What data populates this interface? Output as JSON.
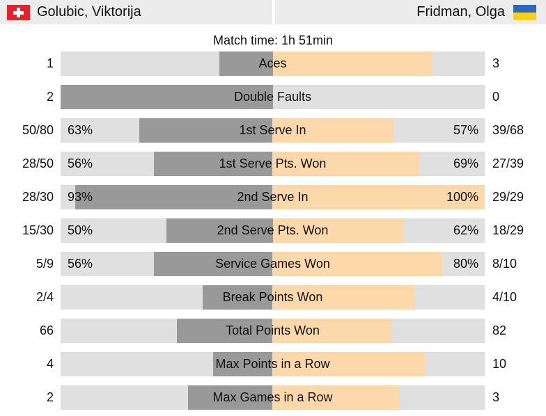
{
  "players": {
    "left": {
      "name": "Golubic, Viktorija",
      "flag": "switzerland-flag-icon"
    },
    "right": {
      "name": "Fridman, Olga",
      "flag": "ukraine-flag-icon"
    }
  },
  "match_time": "Match time: 1h 51min",
  "colors": {
    "left_fill": "#999999",
    "right_fill": "#fdd8ab",
    "bar_bg": "#e0e0e0",
    "header_bg": "#ececec"
  },
  "stats": [
    {
      "label": "Aces",
      "left": "1",
      "right": "3",
      "left_pct": "",
      "right_pct": "",
      "left_ratio": 0.25,
      "right_ratio": 0.75
    },
    {
      "label": "Double Faults",
      "left": "2",
      "right": "0",
      "left_pct": "",
      "right_pct": "",
      "left_ratio": 1.0,
      "right_ratio": 0.0
    },
    {
      "label": "1st Serve In",
      "left": "50/80",
      "right": "39/68",
      "left_pct": "63%",
      "right_pct": "57%",
      "left_ratio": 0.63,
      "right_ratio": 0.57
    },
    {
      "label": "1st Serve Pts. Won",
      "left": "28/50",
      "right": "27/39",
      "left_pct": "56%",
      "right_pct": "69%",
      "left_ratio": 0.56,
      "right_ratio": 0.69
    },
    {
      "label": "2nd Serve In",
      "left": "28/30",
      "right": "29/29",
      "left_pct": "93%",
      "right_pct": "100%",
      "left_ratio": 0.93,
      "right_ratio": 1.0
    },
    {
      "label": "2nd Serve Pts. Won",
      "left": "15/30",
      "right": "18/29",
      "left_pct": "50%",
      "right_pct": "62%",
      "left_ratio": 0.5,
      "right_ratio": 0.62
    },
    {
      "label": "Service Games Won",
      "left": "5/9",
      "right": "8/10",
      "left_pct": "56%",
      "right_pct": "80%",
      "left_ratio": 0.56,
      "right_ratio": 0.8
    },
    {
      "label": "Break Points Won",
      "left": "2/4",
      "right": "4/10",
      "left_pct": "",
      "right_pct": "",
      "left_ratio": 0.33,
      "right_ratio": 0.67
    },
    {
      "label": "Total Points Won",
      "left": "66",
      "right": "82",
      "left_pct": "",
      "right_pct": "",
      "left_ratio": 0.45,
      "right_ratio": 0.56
    },
    {
      "label": "Max Points in a Row",
      "left": "4",
      "right": "10",
      "left_pct": "",
      "right_pct": "",
      "left_ratio": 0.28,
      "right_ratio": 0.72
    },
    {
      "label": "Max Games in a Row",
      "left": "2",
      "right": "3",
      "left_pct": "",
      "right_pct": "",
      "left_ratio": 0.4,
      "right_ratio": 0.6
    }
  ]
}
